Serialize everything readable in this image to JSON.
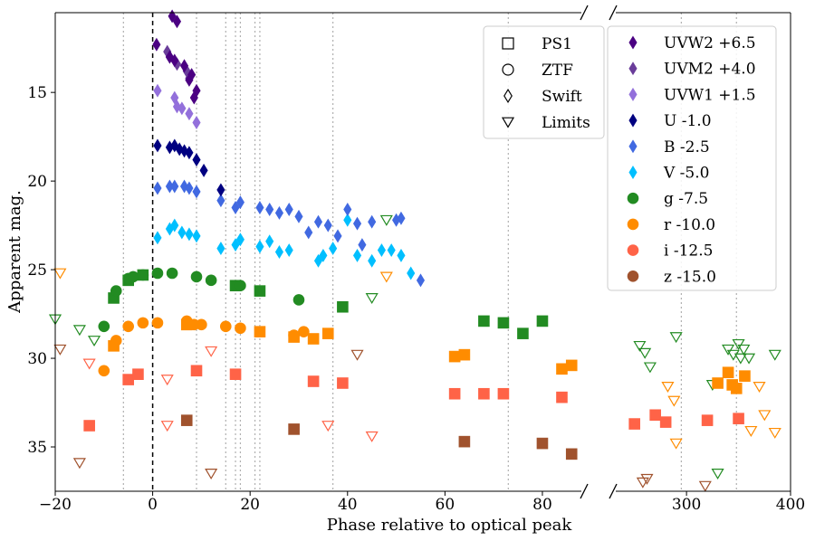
{
  "chart_data": {
    "type": "scatter",
    "title": "",
    "xlabel": "Phase relative to optical peak",
    "ylabel": "Apparent mag.",
    "ylim": [
      37.5,
      10.5
    ],
    "y_inverted": true,
    "yticks": [
      15,
      20,
      25,
      30,
      35
    ],
    "x_break": true,
    "panels": [
      {
        "name": "left",
        "xlim": [
          -20,
          88
        ],
        "xticks": [
          -20,
          0,
          20,
          40,
          60,
          80
        ]
      },
      {
        "name": "right",
        "xlim": [
          232,
          400
        ],
        "xticks": [
          300,
          400
        ]
      }
    ],
    "peak_line_x": 0,
    "epoch_lines_x": [
      -6,
      9,
      15,
      17,
      18,
      21,
      22,
      37,
      73,
      295,
      348
    ],
    "marker_legend": [
      {
        "marker": "square",
        "label": "PS1"
      },
      {
        "marker": "circle",
        "label": "ZTF"
      },
      {
        "marker": "diamond",
        "label": "Swift"
      },
      {
        "marker": "triangle-down",
        "label": "Limits"
      }
    ],
    "series": [
      {
        "name": "UVW2 +6.5",
        "color": "#4b0082",
        "marker": "diamond",
        "filled": true,
        "points": [
          [
            4,
            10.7
          ],
          [
            5,
            11
          ],
          [
            0.8,
            12.3
          ],
          [
            3.5,
            13
          ],
          [
            4.5,
            13.2
          ],
          [
            6.5,
            13.5
          ],
          [
            8,
            14
          ],
          [
            7.5,
            14.3
          ],
          [
            9,
            14.9
          ],
          [
            8.5,
            15.3
          ]
        ]
      },
      {
        "name": "UVM2 +4.0",
        "color": "#6a3d9a",
        "marker": "diamond",
        "filled": true,
        "points": [
          [
            3,
            12.7
          ],
          [
            3.5,
            13
          ],
          [
            5,
            13.4
          ],
          [
            7,
            13.8
          ],
          [
            7.5,
            14.2
          ]
        ]
      },
      {
        "name": "UVW1 +1.5",
        "color": "#9370db",
        "marker": "diamond",
        "filled": true,
        "points": [
          [
            1,
            14.9
          ],
          [
            4.5,
            15.3
          ],
          [
            5,
            15.8
          ],
          [
            6,
            15.9
          ],
          [
            7.5,
            16.2
          ],
          [
            9,
            16.7
          ]
        ]
      },
      {
        "name": "U -1.0",
        "color": "#000080",
        "marker": "diamond",
        "filled": true,
        "points": [
          [
            1,
            18
          ],
          [
            3.5,
            18.1
          ],
          [
            4.5,
            18
          ],
          [
            5.5,
            18.2
          ],
          [
            6.5,
            18.3
          ],
          [
            7.5,
            18.4
          ],
          [
            9,
            18.8
          ],
          [
            10.5,
            19.4
          ],
          [
            14,
            20.5
          ]
        ]
      },
      {
        "name": "B -2.5",
        "color": "#4169e1",
        "marker": "diamond",
        "filled": true,
        "points": [
          [
            1,
            20.4
          ],
          [
            3.5,
            20.3
          ],
          [
            4.5,
            20.3
          ],
          [
            6.5,
            20.3
          ],
          [
            7.5,
            20.4
          ],
          [
            9,
            20.6
          ],
          [
            14,
            21.1
          ],
          [
            17,
            21.5
          ],
          [
            18,
            21.2
          ],
          [
            22,
            21.5
          ],
          [
            24,
            21.6
          ],
          [
            26,
            21.8
          ],
          [
            28,
            21.6
          ],
          [
            30,
            22
          ],
          [
            32,
            22.9
          ],
          [
            34,
            22.3
          ],
          [
            36,
            22.5
          ],
          [
            38,
            23.1
          ],
          [
            40,
            21.6
          ],
          [
            42,
            22.4
          ],
          [
            43,
            23.6
          ],
          [
            45,
            22.3
          ],
          [
            50,
            22.2
          ],
          [
            51,
            22.1
          ],
          [
            55,
            25.6
          ]
        ]
      },
      {
        "name": "V -5.0",
        "color": "#00bfff",
        "marker": "diamond",
        "filled": true,
        "points": [
          [
            1,
            23.2
          ],
          [
            3.5,
            22.7
          ],
          [
            4.5,
            22.5
          ],
          [
            6,
            22.9
          ],
          [
            7.5,
            23
          ],
          [
            9,
            23.1
          ],
          [
            14,
            23.8
          ],
          [
            17,
            23.6
          ],
          [
            18,
            23.3
          ],
          [
            22,
            23.7
          ],
          [
            24,
            23.4
          ],
          [
            26,
            24
          ],
          [
            28,
            23.9
          ],
          [
            34,
            24.5
          ],
          [
            35,
            24.2
          ],
          [
            37,
            23.8
          ],
          [
            40,
            22.2
          ],
          [
            42,
            24.2
          ],
          [
            45,
            24.5
          ],
          [
            47,
            23.9
          ],
          [
            49,
            23.9
          ],
          [
            51,
            24.2
          ],
          [
            53,
            25.2
          ]
        ]
      },
      {
        "name": "g -7.5",
        "color": "#228b22",
        "marker": "circle",
        "filled": true,
        "points": [
          [
            -10,
            28.2
          ],
          [
            -7.5,
            26.2
          ],
          [
            -5,
            25.5
          ],
          [
            -4,
            25.4
          ],
          [
            -2,
            25.3
          ],
          [
            1,
            25.2
          ],
          [
            4,
            25.2
          ],
          [
            9,
            25.4
          ],
          [
            12,
            25.6
          ],
          [
            18,
            25.9
          ],
          [
            30,
            26.7
          ]
        ]
      },
      {
        "name": "r -10.0",
        "color": "#ff8c00",
        "marker": "circle",
        "filled": true,
        "points": [
          [
            -10,
            30.7
          ],
          [
            -7.5,
            29
          ],
          [
            -5,
            28.2
          ],
          [
            -2,
            28
          ],
          [
            1,
            28
          ],
          [
            7,
            27.9
          ],
          [
            8.5,
            28.1
          ],
          [
            10,
            28.1
          ],
          [
            15,
            28.2
          ],
          [
            18,
            28.3
          ],
          [
            29,
            28.7
          ],
          [
            31,
            28.5
          ]
        ]
      },
      {
        "name": "PS1 g",
        "color": "#228b22",
        "marker": "square",
        "filled": true,
        "points": [
          [
            -8,
            26.6
          ],
          [
            -5,
            25.6
          ],
          [
            -2,
            25.3
          ],
          [
            17,
            25.9
          ],
          [
            22,
            26.2
          ],
          [
            39,
            27.1
          ],
          [
            68,
            27.9
          ],
          [
            72,
            28
          ],
          [
            76,
            28.6
          ],
          [
            80,
            27.9
          ]
        ]
      },
      {
        "name": "PS1 r",
        "color": "#ff8c00",
        "marker": "square",
        "filled": true,
        "points": [
          [
            -8,
            29.3
          ],
          [
            7,
            28.1
          ],
          [
            22,
            28.5
          ],
          [
            29,
            28.8
          ],
          [
            33,
            28.9
          ],
          [
            36,
            28.6
          ],
          [
            62,
            29.9
          ],
          [
            64,
            29.8
          ],
          [
            84,
            30.6
          ],
          [
            86,
            30.4
          ],
          [
            330,
            31.4
          ],
          [
            340,
            30.8
          ],
          [
            344,
            31.5
          ],
          [
            348,
            31.7
          ],
          [
            356,
            31
          ]
        ]
      },
      {
        "name": "i -12.5",
        "color": "#ff6347",
        "marker": "square",
        "filled": true,
        "points": [
          [
            -13,
            33.8
          ],
          [
            -5,
            31.2
          ],
          [
            -3,
            30.9
          ],
          [
            9,
            30.7
          ],
          [
            17,
            30.9
          ],
          [
            33,
            31.3
          ],
          [
            39,
            31.4
          ],
          [
            62,
            32
          ],
          [
            68,
            32
          ],
          [
            72,
            32
          ],
          [
            84,
            32.2
          ],
          [
            250,
            33.7
          ],
          [
            270,
            33.2
          ],
          [
            280,
            33.6
          ],
          [
            320,
            33.5
          ],
          [
            350,
            33.4
          ]
        ]
      },
      {
        "name": "z -15.0",
        "color": "#a0522d",
        "marker": "square",
        "filled": true,
        "points": [
          [
            7,
            33.5
          ],
          [
            29,
            34
          ],
          [
            64,
            34.7
          ],
          [
            80,
            34.8
          ],
          [
            86,
            35.4
          ]
        ]
      },
      {
        "name": "g limits",
        "color": "#228b22",
        "marker": "triangle-down",
        "filled": false,
        "points": [
          [
            -20,
            27.8
          ],
          [
            -15,
            28.4
          ],
          [
            -12,
            29
          ],
          [
            45,
            26.6
          ],
          [
            48,
            22.2
          ],
          [
            260,
            29.7
          ],
          [
            265,
            30.5
          ],
          [
            255,
            29.3
          ],
          [
            290,
            28.8
          ],
          [
            325,
            31.5
          ],
          [
            330,
            36.5
          ],
          [
            340,
            29.5
          ],
          [
            345,
            29.8
          ],
          [
            350,
            29.2
          ],
          [
            352,
            30
          ],
          [
            355,
            29.5
          ],
          [
            360,
            30
          ],
          [
            385,
            29.8
          ]
        ]
      },
      {
        "name": "r limits",
        "color": "#ff8c00",
        "marker": "triangle-down",
        "filled": false,
        "points": [
          [
            -19,
            25.2
          ],
          [
            48,
            25.4
          ],
          [
            282,
            31.6
          ],
          [
            288,
            32.4
          ],
          [
            290,
            34.8
          ],
          [
            362,
            34.1
          ],
          [
            370,
            31.6
          ],
          [
            375,
            33.2
          ],
          [
            385,
            34.2
          ]
        ]
      },
      {
        "name": "i limits",
        "color": "#ff6347",
        "marker": "triangle-down",
        "filled": false,
        "points": [
          [
            -13,
            30.3
          ],
          [
            3,
            31.2
          ],
          [
            3,
            33.8
          ],
          [
            12,
            29.6
          ],
          [
            36,
            33.8
          ],
          [
            45,
            34.4
          ]
        ]
      },
      {
        "name": "z limits",
        "color": "#a0522d",
        "marker": "triangle-down",
        "filled": false,
        "points": [
          [
            -19,
            29.5
          ],
          [
            -15,
            35.9
          ],
          [
            12,
            36.5
          ],
          [
            42,
            29.8
          ],
          [
            258,
            37
          ],
          [
            262,
            36.8
          ],
          [
            318,
            37.2
          ]
        ]
      }
    ],
    "color_legend": [
      {
        "label": "UVW2 +6.5",
        "color": "#4b0082",
        "marker": "diamond"
      },
      {
        "label": "UVM2 +4.0",
        "color": "#6a3d9a",
        "marker": "diamond"
      },
      {
        "label": "UVW1 +1.5",
        "color": "#9370db",
        "marker": "diamond"
      },
      {
        "label": "U -1.0",
        "color": "#000080",
        "marker": "diamond"
      },
      {
        "label": "B -2.5",
        "color": "#4169e1",
        "marker": "diamond"
      },
      {
        "label": "V -5.0",
        "color": "#00bfff",
        "marker": "diamond"
      },
      {
        "label": "g -7.5",
        "color": "#228b22",
        "marker": "circle"
      },
      {
        "label": "r -10.0",
        "color": "#ff8c00",
        "marker": "circle"
      },
      {
        "label": "i -12.5",
        "color": "#ff6347",
        "marker": "circle"
      },
      {
        "label": "z -15.0",
        "color": "#a0522d",
        "marker": "circle"
      }
    ]
  }
}
